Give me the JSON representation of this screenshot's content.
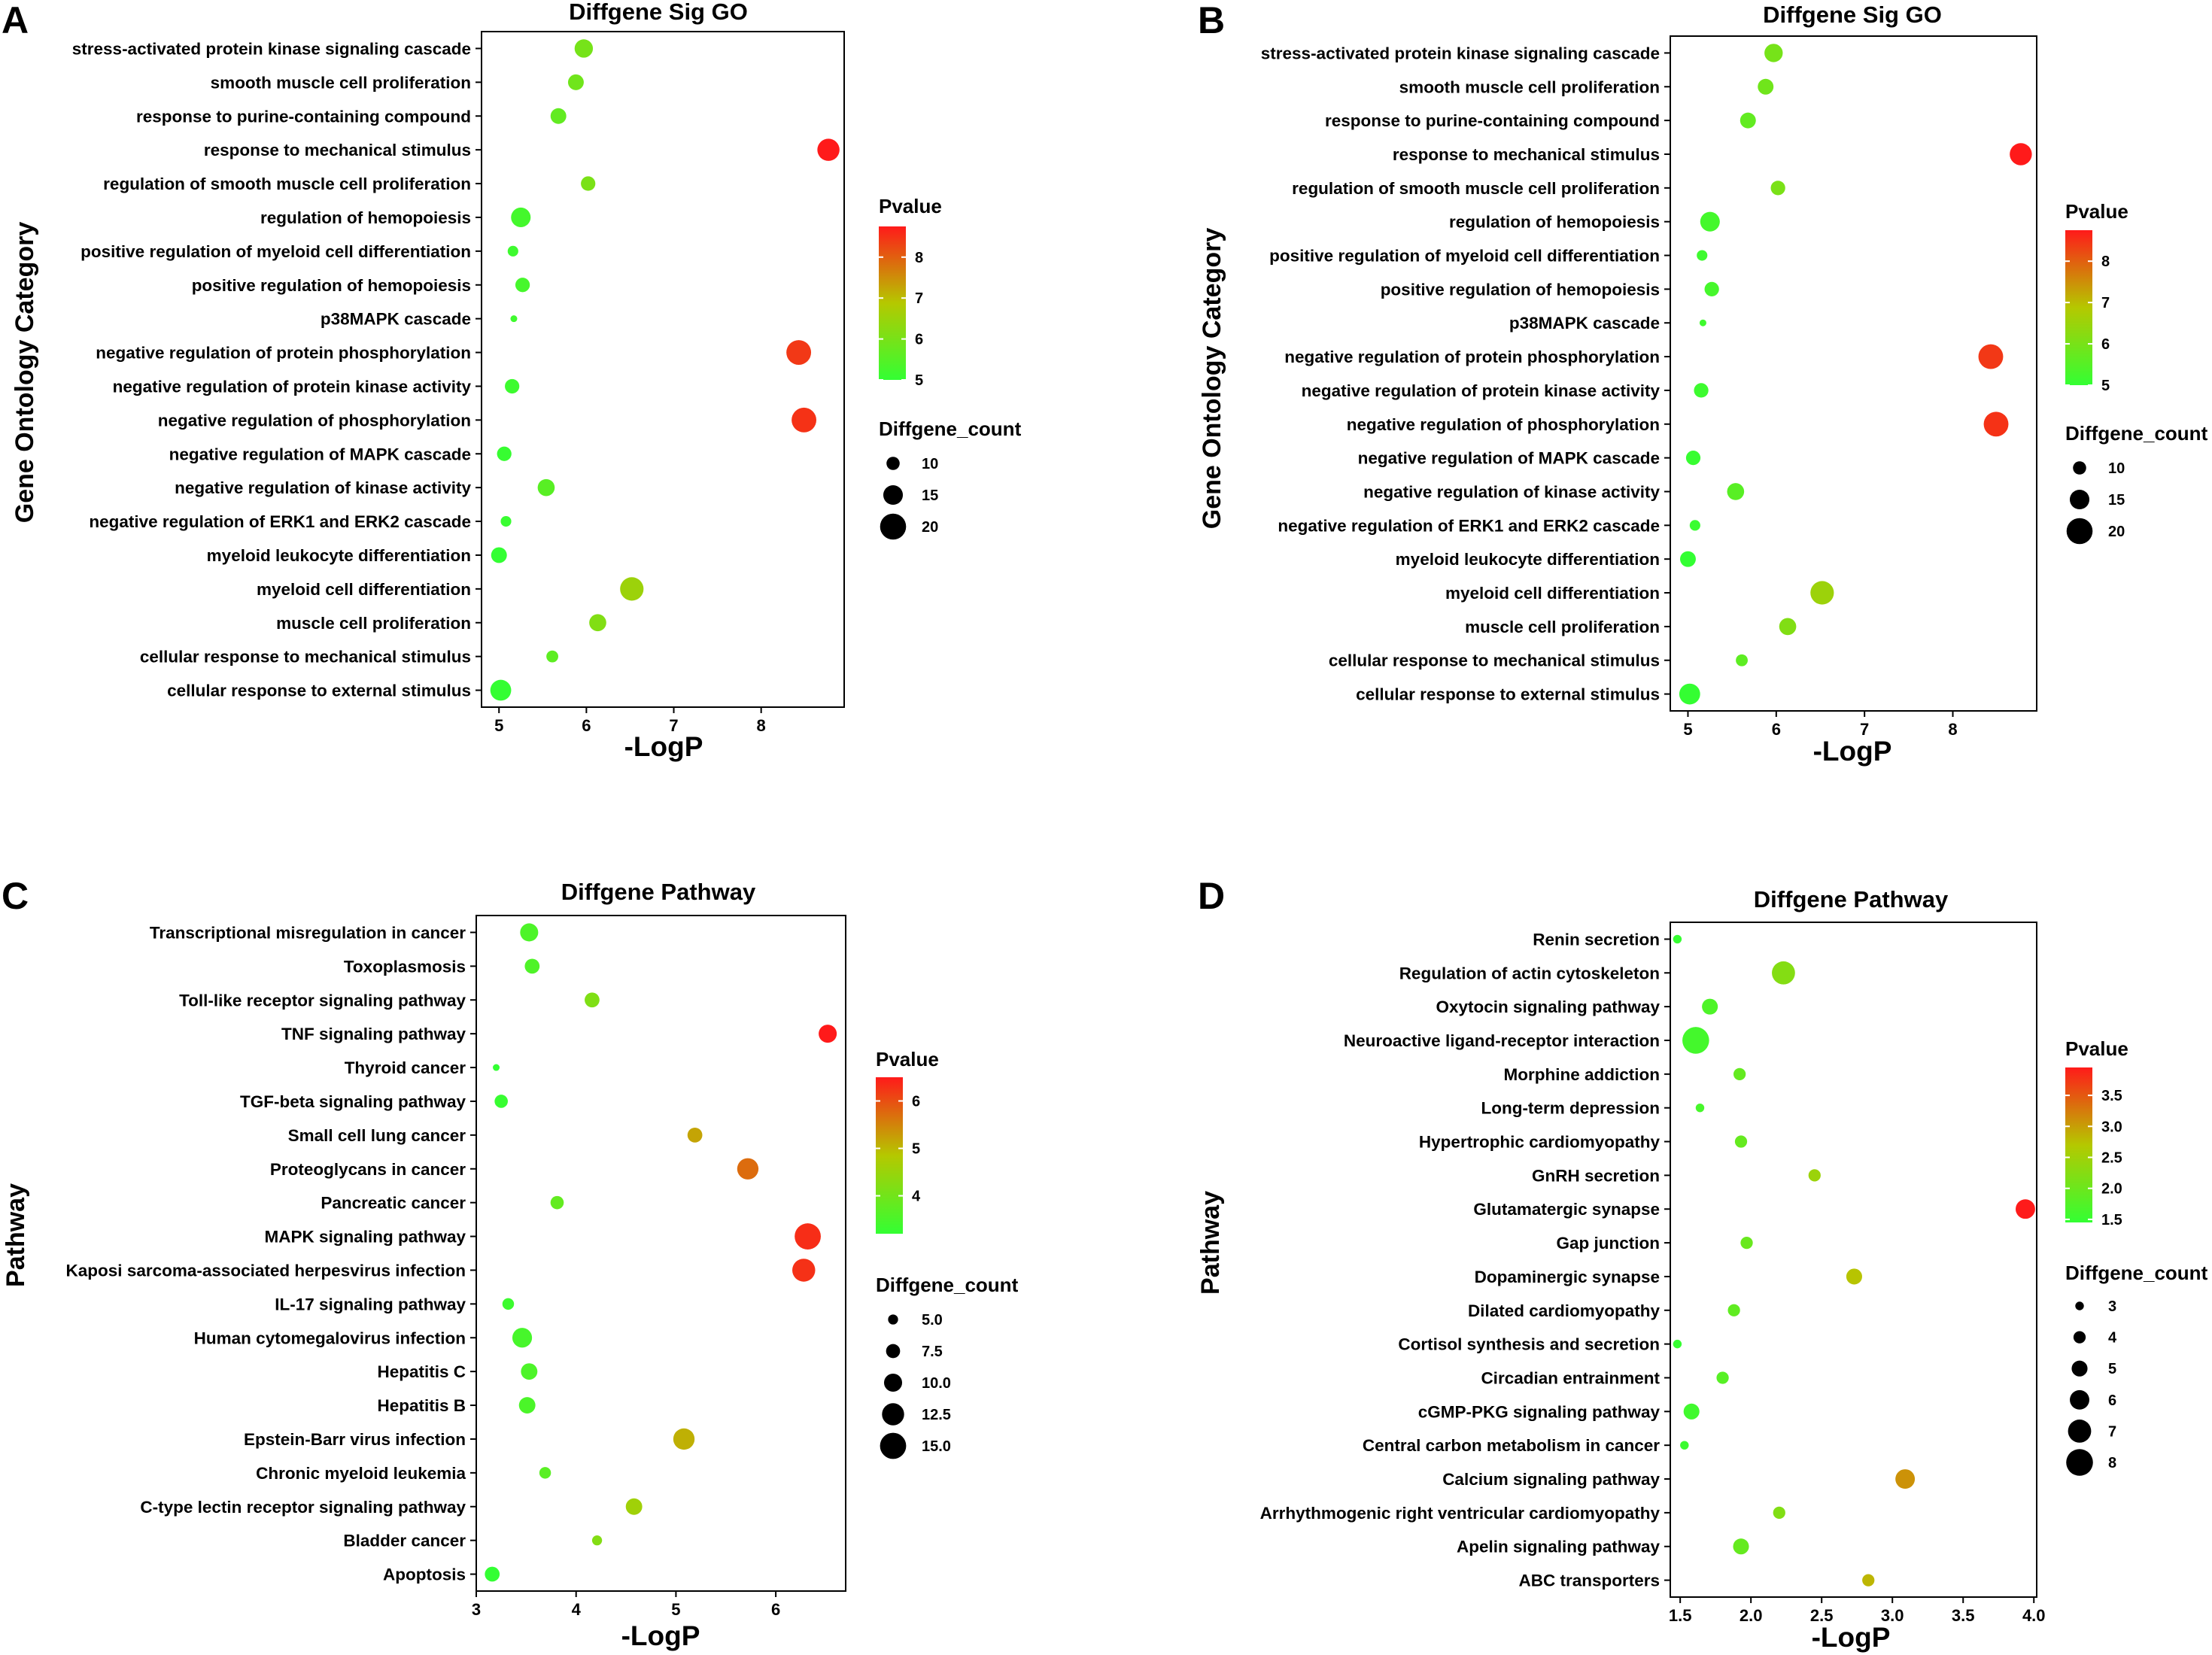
{
  "panels": [
    {
      "letter": "A",
      "title": "Diffgene Sig GO",
      "ylabel": "Gene Ontology Category",
      "xlabel": "-LogP",
      "legend_color_title": "Pvalue",
      "legend_size_title": "Diffgene_count"
    },
    {
      "letter": "B",
      "title": "Diffgene Sig GO",
      "ylabel": "Gene Ontology Category",
      "xlabel": "-LogP",
      "legend_color_title": "Pvalue",
      "legend_size_title": "Diffgene_count"
    },
    {
      "letter": "C",
      "title": "Diffgene Pathway",
      "ylabel": "Pathway",
      "xlabel": "-LogP",
      "legend_color_title": "Pvalue",
      "legend_size_title": "Diffgene_count"
    },
    {
      "letter": "D",
      "title": "Diffgene Pathway",
      "ylabel": "Pathway",
      "xlabel": "-LogP",
      "legend_color_title": "Pvalue",
      "legend_size_title": "Diffgene_count"
    }
  ],
  "colors": {
    "low": "#33ff33",
    "mid": "#b5c800",
    "high": "#ff1a1a",
    "point_outline": "none",
    "frame": "#000000"
  },
  "chart_data": [
    {
      "type": "scatter",
      "panel": "A",
      "title": "Diffgene Sig GO",
      "xlabel": "-LogP",
      "ylabel": "Gene Ontology Category",
      "xlim": [
        4.8,
        8.95
      ],
      "xticks": [
        5,
        6,
        7,
        8
      ],
      "xtick_labels": [
        "5",
        "6",
        "7",
        "8"
      ],
      "color_range": [
        5,
        8.75
      ],
      "color_ticks": [
        5,
        6,
        7,
        8
      ],
      "color_tick_labels": [
        "5",
        "6",
        "7",
        "8"
      ],
      "size_range": [
        5,
        22
      ],
      "size_legend": [
        10,
        15,
        20
      ],
      "size_legend_labels": [
        "10",
        "15",
        "20"
      ],
      "categories": [
        "stress-activated protein kinase signaling cascade",
        "smooth muscle cell proliferation",
        "response to purine-containing compound",
        "response to mechanical stimulus",
        "regulation of smooth muscle cell proliferation",
        "regulation of hemopoiesis",
        "positive regulation of myeloid cell differentiation",
        "positive regulation of hemopoiesis",
        "p38MAPK cascade",
        "negative regulation of protein phosphorylation",
        "negative regulation of protein kinase activity",
        "negative regulation of phosphorylation",
        "negative regulation of MAPK cascade",
        "negative regulation of kinase activity",
        "negative regulation of ERK1 and ERK2 cascade",
        "myeloid leukocyte differentiation",
        "myeloid cell differentiation",
        "muscle cell proliferation",
        "cellular response to mechanical stimulus",
        "cellular response to external stimulus"
      ],
      "x": [
        5.97,
        5.88,
        5.68,
        8.77,
        6.02,
        5.25,
        5.16,
        5.27,
        5.17,
        8.43,
        5.15,
        8.49,
        5.06,
        5.54,
        5.08,
        5.0,
        6.52,
        6.13,
        5.61,
        5.02
      ],
      "pvalue": [
        5.97,
        5.88,
        5.68,
        8.77,
        6.02,
        5.25,
        5.16,
        5.27,
        5.17,
        8.43,
        5.15,
        8.49,
        5.06,
        5.54,
        5.08,
        5.0,
        6.52,
        6.13,
        5.61,
        5.02
      ],
      "count": [
        14,
        12,
        12,
        17,
        11,
        15,
        8,
        11,
        5,
        19,
        11,
        19,
        11,
        13,
        8,
        12,
        18,
        13,
        9,
        16
      ]
    },
    {
      "type": "scatter",
      "panel": "B",
      "title": "Diffgene Sig GO",
      "xlabel": "-LogP",
      "ylabel": "Gene Ontology Category",
      "xlim": [
        4.8,
        8.95
      ],
      "xticks": [
        5,
        6,
        7,
        8
      ],
      "xtick_labels": [
        "5",
        "6",
        "7",
        "8"
      ],
      "color_range": [
        5,
        8.75
      ],
      "color_ticks": [
        5,
        6,
        7,
        8
      ],
      "color_tick_labels": [
        "5",
        "6",
        "7",
        "8"
      ],
      "size_range": [
        5,
        22
      ],
      "size_legend": [
        10,
        15,
        20
      ],
      "size_legend_labels": [
        "10",
        "15",
        "20"
      ],
      "categories": [
        "stress-activated protein kinase signaling cascade",
        "smooth muscle cell proliferation",
        "response to purine-containing compound",
        "response to mechanical stimulus",
        "regulation of smooth muscle cell proliferation",
        "regulation of hemopoiesis",
        "positive regulation of myeloid cell differentiation",
        "positive regulation of hemopoiesis",
        "p38MAPK cascade",
        "negative regulation of protein phosphorylation",
        "negative regulation of protein kinase activity",
        "negative regulation of phosphorylation",
        "negative regulation of MAPK cascade",
        "negative regulation of kinase activity",
        "negative regulation of ERK1 and ERK2 cascade",
        "myeloid leukocyte differentiation",
        "myeloid cell differentiation",
        "muscle cell proliferation",
        "cellular response to mechanical stimulus",
        "cellular response to external stimulus"
      ],
      "x": [
        5.97,
        5.88,
        5.68,
        8.77,
        6.02,
        5.25,
        5.16,
        5.27,
        5.17,
        8.43,
        5.15,
        8.49,
        5.06,
        5.54,
        5.08,
        5.0,
        6.52,
        6.13,
        5.61,
        5.02
      ],
      "pvalue": [
        5.97,
        5.88,
        5.68,
        8.77,
        6.02,
        5.25,
        5.16,
        5.27,
        5.17,
        8.43,
        5.15,
        8.49,
        5.06,
        5.54,
        5.08,
        5.0,
        6.52,
        6.13,
        5.61,
        5.02
      ],
      "count": [
        14,
        12,
        12,
        17,
        11,
        15,
        8,
        11,
        5,
        19,
        11,
        19,
        11,
        13,
        8,
        12,
        18,
        13,
        9,
        16
      ]
    },
    {
      "type": "scatter",
      "panel": "C",
      "title": "Diffgene Pathway",
      "xlabel": "-LogP",
      "ylabel": "Pathway",
      "xlim": [
        3.0,
        6.7
      ],
      "xticks": [
        3,
        4,
        5,
        6
      ],
      "xtick_labels": [
        "3",
        "4",
        "5",
        "6"
      ],
      "color_range": [
        3.2,
        6.5
      ],
      "color_ticks": [
        4,
        5,
        6
      ],
      "color_tick_labels": [
        "4",
        "5",
        "6"
      ],
      "size_range": [
        3,
        16.5
      ],
      "size_legend": [
        5.0,
        7.5,
        10.0,
        12.5,
        15.0
      ],
      "size_legend_labels": [
        "5.0",
        "7.5",
        "10.0",
        "12.5",
        "15.0"
      ],
      "categories": [
        "Transcriptional misregulation in cancer",
        "Toxoplasmosis",
        "Toll-like receptor signaling pathway",
        "TNF signaling pathway",
        "Thyroid cancer",
        "TGF-beta signaling pathway",
        "Small cell lung cancer",
        "Proteoglycans in cancer",
        "Pancreatic cancer",
        "MAPK signaling pathway",
        "Kaposi sarcoma-associated herpesvirus infection",
        "IL-17 signaling pathway",
        "Human cytomegalovirus infection",
        "Hepatitis C",
        "Hepatitis B",
        "Epstein-Barr virus infection",
        "Chronic myeloid leukemia",
        "C-type lectin receptor signaling pathway",
        "Bladder cancer",
        "Apoptosis"
      ],
      "x": [
        3.53,
        3.56,
        4.16,
        6.52,
        3.2,
        3.25,
        5.19,
        5.72,
        3.81,
        6.32,
        6.28,
        3.32,
        3.46,
        3.53,
        3.51,
        5.08,
        3.69,
        4.58,
        4.21,
        3.16
      ],
      "pvalue": [
        3.53,
        3.56,
        4.16,
        6.52,
        3.2,
        3.25,
        5.19,
        5.72,
        3.81,
        6.32,
        6.28,
        3.32,
        3.46,
        3.53,
        3.51,
        5.08,
        3.69,
        4.58,
        4.21,
        3.16
      ],
      "count": [
        10,
        8,
        8,
        10,
        3,
        7,
        8,
        12,
        7,
        15,
        13,
        6,
        11,
        9,
        9,
        12,
        6,
        9,
        5,
        8
      ]
    },
    {
      "type": "scatter",
      "panel": "D",
      "title": "Diffgene Pathway",
      "xlabel": "-LogP",
      "ylabel": "Pathway",
      "xlim": [
        1.43,
        4.02
      ],
      "xticks": [
        1.5,
        2.0,
        2.5,
        3.0,
        3.5,
        4.0
      ],
      "xtick_labels": [
        "1.5",
        "2.0",
        "2.5",
        "3.0",
        "3.5",
        "4.0"
      ],
      "color_range": [
        1.45,
        3.95
      ],
      "color_ticks": [
        1.5,
        2.0,
        2.5,
        3.0,
        3.5
      ],
      "color_tick_labels": [
        "1.5",
        "2.0",
        "2.5",
        "3.0",
        "3.5"
      ],
      "size_range": [
        2.5,
        8.5
      ],
      "size_legend": [
        3,
        4,
        5,
        6,
        7,
        8
      ],
      "size_legend_labels": [
        "3",
        "4",
        "5",
        "6",
        "7",
        "8"
      ],
      "categories": [
        "Renin secretion",
        "Regulation of actin cytoskeleton",
        "Oxytocin signaling pathway",
        "Neuroactive ligand-receptor interaction",
        "Morphine addiction",
        "Long-term depression",
        "Hypertrophic cardiomyopathy",
        "GnRH secretion",
        "Glutamatergic synapse",
        "Gap junction",
        "Dopaminergic synapse",
        "Dilated cardiomyopathy",
        "Cortisol synthesis and secretion",
        "Circadian entrainment",
        "cGMP-PKG signaling pathway",
        "Central carbon metabolism in cancer",
        "Calcium signaling pathway",
        "Arrhythmogenic right ventricular cardiomyopathy",
        "Apelin signaling pathway",
        "ABC transporters"
      ],
      "x": [
        1.48,
        2.23,
        1.71,
        1.61,
        1.92,
        1.64,
        1.93,
        2.45,
        3.94,
        1.97,
        2.73,
        1.88,
        1.48,
        1.8,
        1.58,
        1.53,
        3.09,
        2.2,
        1.93,
        2.83
      ],
      "pvalue": [
        1.48,
        2.23,
        1.71,
        1.61,
        1.92,
        1.64,
        1.93,
        2.45,
        3.94,
        1.97,
        2.73,
        1.88,
        1.48,
        1.8,
        1.58,
        1.53,
        3.09,
        2.2,
        1.93,
        2.83
      ],
      "count": [
        3,
        7,
        5,
        8,
        4,
        3,
        4,
        4,
        6,
        4,
        5,
        4,
        3,
        4,
        5,
        3,
        6,
        4,
        5,
        4
      ]
    }
  ]
}
